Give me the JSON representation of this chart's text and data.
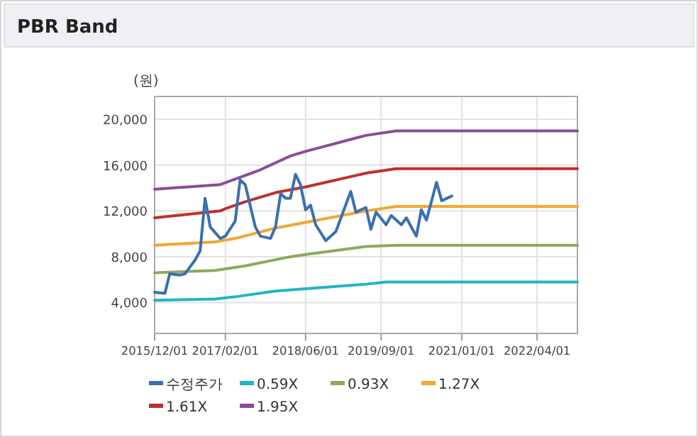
{
  "chart_data": {
    "type": "line",
    "title": "PBR Band",
    "ylabel": "(원)",
    "xlim": [
      "2015-12-01",
      "2022-12-01"
    ],
    "ylim": [
      1300,
      22000
    ],
    "xticks": [
      {
        "value": "2015-12-01",
        "label": "2015/12/01"
      },
      {
        "value": "2017-02-01",
        "label": "2017/02/01"
      },
      {
        "value": "2018-06-01",
        "label": "2018/06/01"
      },
      {
        "value": "2019-09-01",
        "label": "2019/09/01"
      },
      {
        "value": "2021-01-01",
        "label": "2021/01/01"
      },
      {
        "value": "2022-04-01",
        "label": "2022/04/01"
      }
    ],
    "yticks": [
      {
        "value": 4000,
        "label": "4,000"
      },
      {
        "value": 8000,
        "label": "8,000"
      },
      {
        "value": 12000,
        "label": "12,000"
      },
      {
        "value": 16000,
        "label": "16,000"
      },
      {
        "value": 20000,
        "label": "20,000"
      }
    ],
    "grid": true,
    "legend": "bottom",
    "marker": "none",
    "line_style": "solid",
    "series": [
      {
        "name": "수정주가",
        "color": "#3b6fb0",
        "x": [
          "2015-12",
          "2016-02",
          "2016-03",
          "2016-05",
          "2016-06",
          "2016-08",
          "2016-09",
          "2016-10",
          "2016-11",
          "2017-01",
          "2017-02",
          "2017-04",
          "2017-05",
          "2017-06",
          "2017-08",
          "2017-09",
          "2017-11",
          "2017-12",
          "2018-01",
          "2018-02",
          "2018-03",
          "2018-04",
          "2018-05",
          "2018-06",
          "2018-07",
          "2018-08",
          "2018-10",
          "2018-12",
          "2019-01",
          "2019-03",
          "2019-04",
          "2019-06",
          "2019-07",
          "2019-08",
          "2019-10",
          "2019-11",
          "2020-01",
          "2020-02",
          "2020-03",
          "2020-04",
          "2020-05",
          "2020-06",
          "2020-08",
          "2020-09",
          "2020-11"
        ],
        "values": [
          4900,
          4800,
          6500,
          6400,
          6500,
          7700,
          8500,
          13100,
          10600,
          9600,
          9800,
          11100,
          14700,
          14300,
          10600,
          9800,
          9600,
          10600,
          13500,
          13100,
          13100,
          15200,
          14300,
          12100,
          12500,
          10800,
          9400,
          10200,
          11400,
          13700,
          11900,
          12300,
          10400,
          11900,
          10800,
          11600,
          10800,
          11400,
          10600,
          9800,
          12100,
          11200,
          14500,
          12900,
          13300
        ]
      },
      {
        "name": "0.59X",
        "color": "#22b4c4",
        "x": [
          "2015-12",
          "2016-12",
          "2017-04",
          "2017-12",
          "2018-06",
          "2019-06",
          "2019-10",
          "2022-12"
        ],
        "values": [
          4200,
          4300,
          4500,
          5000,
          5200,
          5600,
          5800,
          5800
        ]
      },
      {
        "name": "0.93X",
        "color": "#8caa5c",
        "x": [
          "2015-12",
          "2016-12",
          "2017-06",
          "2018-03",
          "2018-06",
          "2019-06",
          "2019-12",
          "2022-12"
        ],
        "values": [
          6600,
          6800,
          7200,
          8000,
          8200,
          8900,
          9000,
          9000
        ]
      },
      {
        "name": "1.27X",
        "color": "#f0a832",
        "x": [
          "2015-12",
          "2016-12",
          "2017-04",
          "2017-12",
          "2018-06",
          "2019-06",
          "2019-12",
          "2022-12"
        ],
        "values": [
          9000,
          9300,
          9600,
          10500,
          11000,
          12000,
          12400,
          12400
        ]
      },
      {
        "name": "1.61X",
        "color": "#c0302c",
        "x": [
          "2015-12",
          "2017-01",
          "2017-02",
          "2017-06",
          "2017-12",
          "2018-06",
          "2019-06",
          "2019-12",
          "2022-12"
        ],
        "values": [
          11400,
          12000,
          12200,
          12800,
          13600,
          14100,
          15300,
          15700,
          15700
        ]
      },
      {
        "name": "1.95X",
        "color": "#8a4c9a",
        "x": [
          "2015-12",
          "2017-01",
          "2017-09",
          "2018-03",
          "2018-06",
          "2019-06",
          "2019-12",
          "2022-12"
        ],
        "values": [
          13900,
          14300,
          15600,
          16800,
          17200,
          18600,
          19000,
          19000
        ]
      }
    ]
  }
}
